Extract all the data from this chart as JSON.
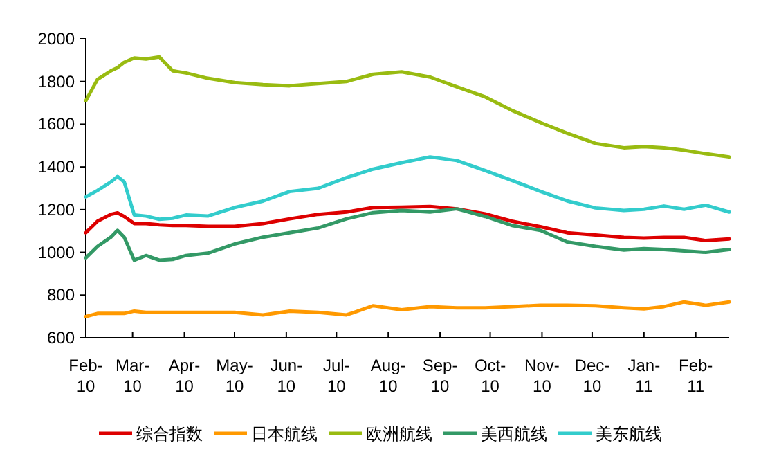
{
  "chart_data": {
    "type": "line",
    "legend": "bottom",
    "grid": false,
    "marker": "none",
    "line_style": "solid",
    "x": [
      "2010-02-01",
      "2010-02-08",
      "2010-02-16",
      "2010-02-20",
      "2010-02-24",
      "2010-03-02",
      "2010-03-09",
      "2010-03-17",
      "2010-03-25",
      "2010-04-02",
      "2010-04-15",
      "2010-05-01",
      "2010-05-18",
      "2010-06-03",
      "2010-06-20",
      "2010-07-07",
      "2010-07-23",
      "2010-08-09",
      "2010-08-26",
      "2010-09-11",
      "2010-09-28",
      "2010-10-14",
      "2010-10-31",
      "2010-11-16",
      "2010-12-03",
      "2010-12-20",
      "2011-01-01",
      "2011-01-13",
      "2011-01-25",
      "2011-02-07",
      "2011-02-21"
    ],
    "xlim": [
      "2010-02-01",
      "2011-02-21"
    ],
    "xticks": [
      {
        "value": "2010-02-01",
        "label": "Feb-10"
      },
      {
        "value": "2010-03-01",
        "label": "Mar-10"
      },
      {
        "value": "2010-04-01",
        "label": "Apr-10"
      },
      {
        "value": "2010-05-01",
        "label": "May-10"
      },
      {
        "value": "2010-06-01",
        "label": "Jun-10"
      },
      {
        "value": "2010-07-01",
        "label": "Jul-10"
      },
      {
        "value": "2010-08-01",
        "label": "Aug-10"
      },
      {
        "value": "2010-09-01",
        "label": "Sep-10"
      },
      {
        "value": "2010-10-01",
        "label": "Oct-10"
      },
      {
        "value": "2010-11-01",
        "label": "Nov-10"
      },
      {
        "value": "2010-12-01",
        "label": "Dec-10"
      },
      {
        "value": "2011-01-01",
        "label": "Jan-11"
      },
      {
        "value": "2011-02-01",
        "label": "Feb-11"
      }
    ],
    "ylim": [
      600,
      2000
    ],
    "yticks": [
      600,
      800,
      1000,
      1200,
      1400,
      1600,
      1800,
      2000
    ],
    "series": [
      {
        "name": "综合指数",
        "color": "#dd0000",
        "values": [
          1092,
          1146,
          1178,
          1185,
          1168,
          1135,
          1135,
          1129,
          1126,
          1126,
          1122,
          1122,
          1135,
          1157,
          1178,
          1189,
          1210,
          1212,
          1215,
          1204,
          1180,
          1146,
          1120,
          1092,
          1081,
          1070,
          1067,
          1070,
          1070,
          1055,
          1063
        ]
      },
      {
        "name": "日本航线",
        "color": "#ff9900",
        "values": [
          699,
          714,
          714,
          714,
          714,
          725,
          719,
          719,
          719,
          719,
          719,
          719,
          707,
          725,
          719,
          707,
          750,
          731,
          746,
          740,
          740,
          746,
          752,
          752,
          750,
          740,
          735,
          746,
          768,
          752,
          768
        ]
      },
      {
        "name": "欧洲航线",
        "color": "#99bb11",
        "values": [
          1710,
          1810,
          1850,
          1865,
          1890,
          1910,
          1905,
          1915,
          1850,
          1840,
          1815,
          1795,
          1785,
          1780,
          1790,
          1800,
          1834,
          1845,
          1821,
          1775,
          1728,
          1665,
          1608,
          1558,
          1510,
          1490,
          1495,
          1490,
          1478,
          1462,
          1447
        ]
      },
      {
        "name": "美西航线",
        "color": "#339966",
        "values": [
          974,
          1028,
          1071,
          1103,
          1071,
          963,
          985,
          963,
          967,
          985,
          996,
          1039,
          1071,
          1092,
          1114,
          1157,
          1186,
          1196,
          1189,
          1204,
          1168,
          1126,
          1103,
          1049,
          1028,
          1011,
          1017,
          1013,
          1007,
          1000,
          1013
        ]
      },
      {
        "name": "美东航线",
        "color": "#33cccc",
        "values": [
          1260,
          1290,
          1330,
          1355,
          1330,
          1175,
          1170,
          1155,
          1160,
          1175,
          1170,
          1210,
          1240,
          1285,
          1300,
          1350,
          1390,
          1420,
          1447,
          1430,
          1383,
          1337,
          1286,
          1241,
          1208,
          1196,
          1202,
          1217,
          1202,
          1221,
          1189
        ]
      }
    ]
  }
}
